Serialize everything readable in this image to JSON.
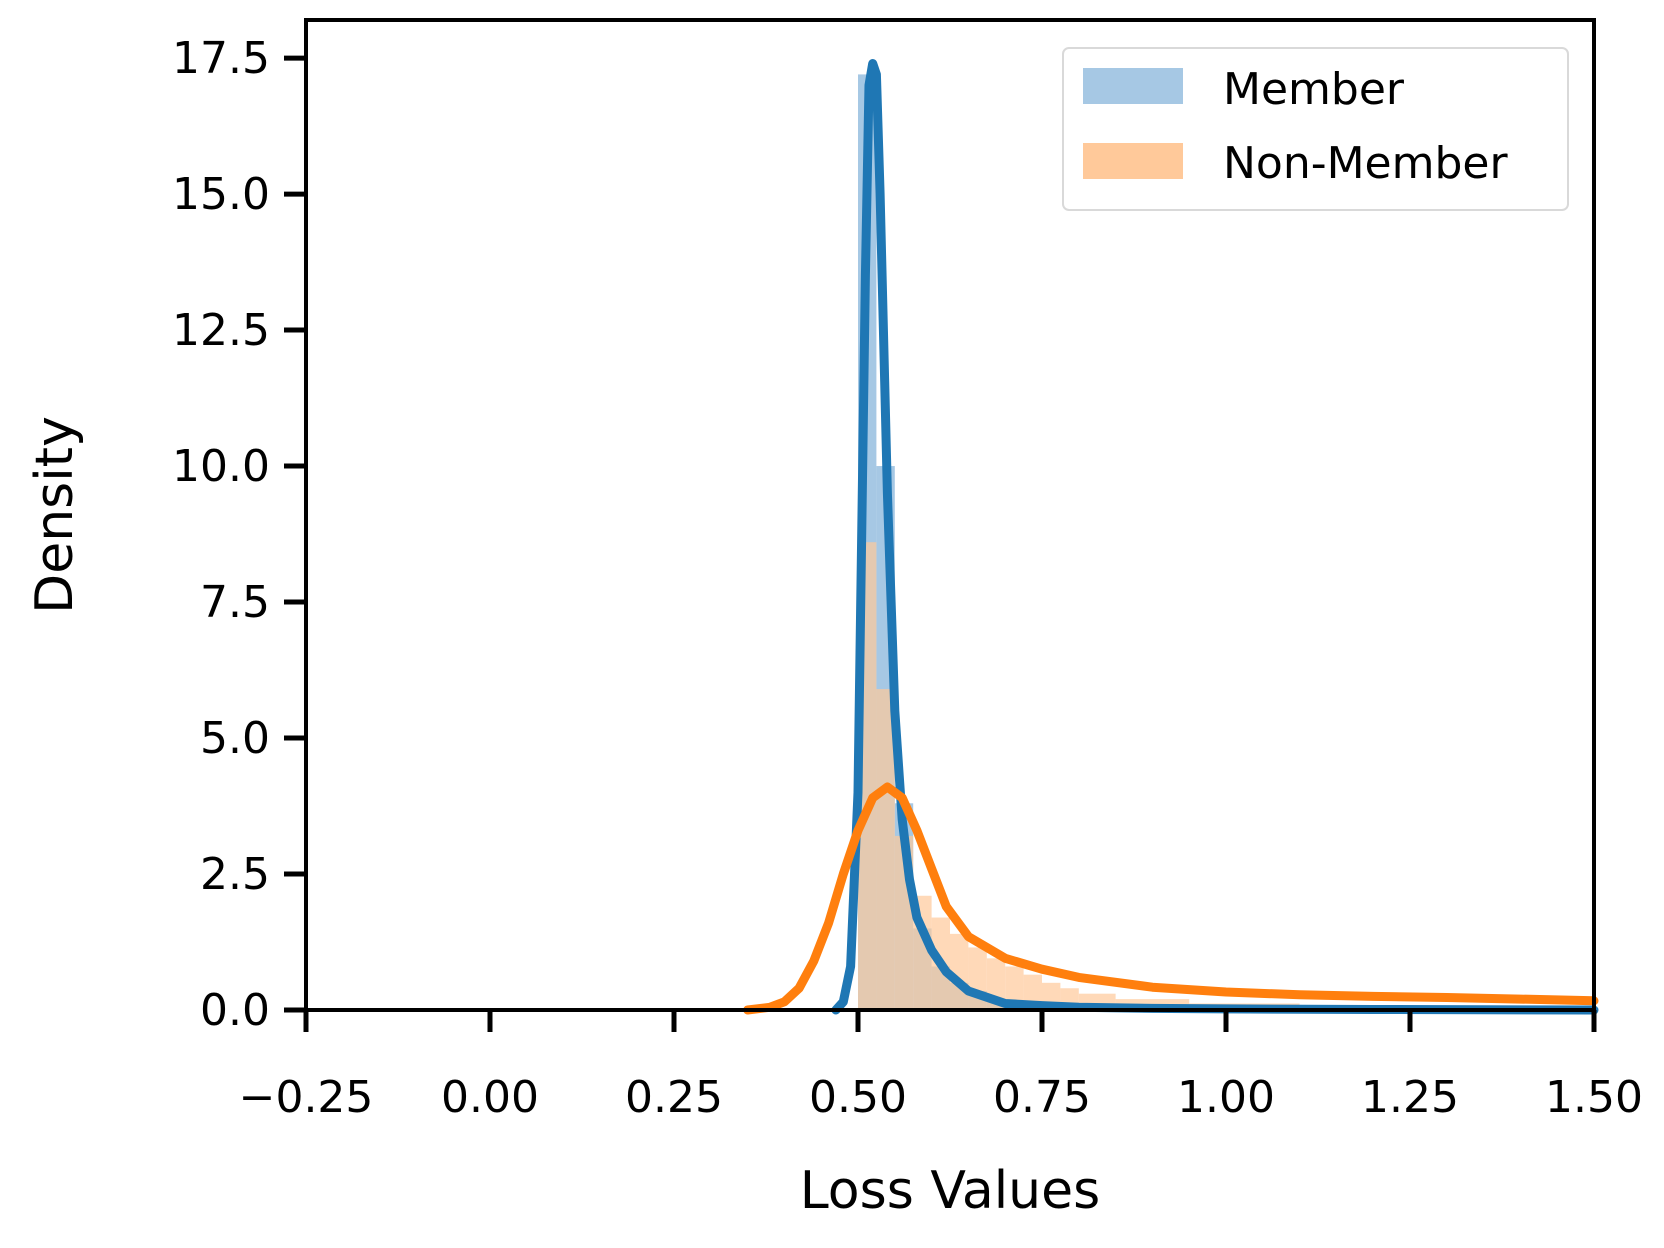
{
  "chart_data": {
    "type": "histogram+kde",
    "title": "",
    "xlabel": "Loss Values",
    "ylabel": "Density",
    "xlim": [
      -0.25,
      1.5
    ],
    "ylim": [
      0,
      18.2
    ],
    "xticks": [
      "−0.25",
      "0.00",
      "0.25",
      "0.50",
      "0.75",
      "1.00",
      "1.25",
      "1.50"
    ],
    "xtick_values": [
      -0.25,
      0,
      0.25,
      0.5,
      0.75,
      1.0,
      1.25,
      1.5
    ],
    "yticks": [
      "0.0",
      "2.5",
      "5.0",
      "7.5",
      "10.0",
      "12.5",
      "15.0",
      "17.5"
    ],
    "ytick_values": [
      0,
      2.5,
      5,
      7.5,
      10,
      12.5,
      15,
      17.5
    ],
    "grid": false,
    "legend_position": "top-right",
    "series": [
      {
        "name": "Member",
        "hist_color": "#a6c8e4",
        "line_color": "#1f77b4",
        "bins": [
          {
            "x0": 0.5,
            "x1": 0.525,
            "y": 17.2
          },
          {
            "x0": 0.525,
            "x1": 0.55,
            "y": 10.0
          },
          {
            "x0": 0.55,
            "x1": 0.575,
            "y": 3.8
          },
          {
            "x0": 0.575,
            "x1": 0.6,
            "y": 1.5
          },
          {
            "x0": 0.6,
            "x1": 0.625,
            "y": 0.8
          },
          {
            "x0": 0.625,
            "x1": 0.65,
            "y": 0.5
          },
          {
            "x0": 0.65,
            "x1": 0.675,
            "y": 0.35
          },
          {
            "x0": 0.675,
            "x1": 0.7,
            "y": 0.2
          },
          {
            "x0": 0.7,
            "x1": 0.725,
            "y": 0.1
          },
          {
            "x0": 0.725,
            "x1": 0.75,
            "y": 0.05
          }
        ],
        "kde": {
          "x": [
            0.47,
            0.48,
            0.49,
            0.5,
            0.51,
            0.515,
            0.52,
            0.525,
            0.53,
            0.54,
            0.55,
            0.56,
            0.57,
            0.58,
            0.6,
            0.62,
            0.65,
            0.7,
            0.75,
            0.8,
            0.9,
            1.0,
            1.2,
            1.5
          ],
          "y": [
            0.0,
            0.15,
            0.8,
            4.0,
            13.5,
            17.0,
            17.4,
            17.2,
            15.0,
            9.5,
            5.5,
            3.5,
            2.4,
            1.7,
            1.1,
            0.7,
            0.35,
            0.12,
            0.08,
            0.05,
            0.03,
            0.02,
            0.01,
            0.0
          ]
        }
      },
      {
        "name": "Non-Member",
        "hist_color": "#ffc99a",
        "line_color": "#ff7f0e",
        "bins": [
          {
            "x0": 0.5,
            "x1": 0.525,
            "y": 8.6
          },
          {
            "x0": 0.525,
            "x1": 0.55,
            "y": 5.9
          },
          {
            "x0": 0.55,
            "x1": 0.575,
            "y": 3.2
          },
          {
            "x0": 0.575,
            "x1": 0.6,
            "y": 2.1
          },
          {
            "x0": 0.6,
            "x1": 0.625,
            "y": 1.7
          },
          {
            "x0": 0.625,
            "x1": 0.65,
            "y": 1.4
          },
          {
            "x0": 0.65,
            "x1": 0.675,
            "y": 1.15
          },
          {
            "x0": 0.675,
            "x1": 0.7,
            "y": 0.95
          },
          {
            "x0": 0.7,
            "x1": 0.725,
            "y": 0.8
          },
          {
            "x0": 0.725,
            "x1": 0.75,
            "y": 0.65
          },
          {
            "x0": 0.75,
            "x1": 0.775,
            "y": 0.5
          },
          {
            "x0": 0.775,
            "x1": 0.8,
            "y": 0.4
          },
          {
            "x0": 0.8,
            "x1": 0.85,
            "y": 0.3
          },
          {
            "x0": 0.85,
            "x1": 0.95,
            "y": 0.2
          },
          {
            "x0": 0.95,
            "x1": 1.1,
            "y": 0.12
          },
          {
            "x0": 1.1,
            "x1": 1.5,
            "y": 0.06
          }
        ],
        "kde": {
          "x": [
            0.35,
            0.38,
            0.4,
            0.42,
            0.44,
            0.46,
            0.48,
            0.5,
            0.52,
            0.54,
            0.56,
            0.58,
            0.6,
            0.62,
            0.65,
            0.7,
            0.75,
            0.8,
            0.9,
            1.0,
            1.1,
            1.2,
            1.3,
            1.4,
            1.5
          ],
          "y": [
            0.0,
            0.05,
            0.15,
            0.4,
            0.9,
            1.6,
            2.5,
            3.3,
            3.9,
            4.1,
            3.9,
            3.3,
            2.6,
            1.9,
            1.35,
            0.95,
            0.75,
            0.6,
            0.42,
            0.33,
            0.28,
            0.25,
            0.23,
            0.2,
            0.17
          ]
        }
      }
    ]
  }
}
